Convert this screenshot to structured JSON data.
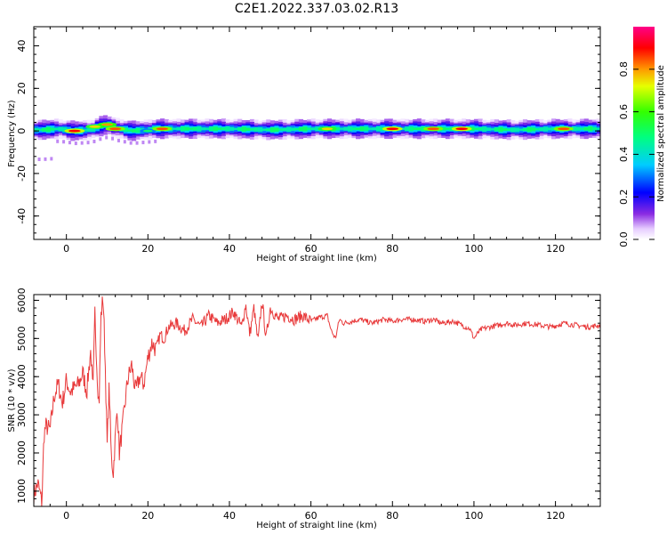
{
  "title": "C2E1.2022.337.03.02.R13",
  "chart_data": [
    {
      "type": "heatmap",
      "xlabel": "Height of straight line (km)",
      "ylabel": "Frequency (Hz)",
      "xlim": [
        -8,
        131
      ],
      "ylim": [
        -51,
        49
      ],
      "xticks": [
        0,
        20,
        40,
        60,
        80,
        100,
        120
      ],
      "yticks": [
        -40,
        -20,
        0,
        20,
        40
      ],
      "colorbar": {
        "label": "Normalized spectral amplitude",
        "ticks": [
          "0.0",
          "0.2",
          "0.4",
          "0.6",
          "0.8"
        ],
        "range": [
          0,
          1
        ],
        "colormap": "gist_rainbow_r (magenta-red high, violet/white low)"
      },
      "ridge_frequency_hz": [
        [
          -6,
          0.5
        ],
        [
          -2,
          1
        ],
        [
          2,
          0
        ],
        [
          6,
          0.5
        ],
        [
          8,
          2
        ],
        [
          10,
          3
        ],
        [
          12,
          1.5
        ],
        [
          16,
          0
        ],
        [
          22,
          1
        ],
        [
          30,
          1
        ],
        [
          40,
          1
        ],
        [
          50,
          0.5
        ],
        [
          60,
          1
        ],
        [
          70,
          1
        ],
        [
          80,
          1
        ],
        [
          90,
          1
        ],
        [
          100,
          1
        ],
        [
          110,
          0.5
        ],
        [
          120,
          1
        ],
        [
          130,
          1
        ]
      ],
      "hot_spots": [
        {
          "x": 2,
          "y": 0,
          "amplitude": 0.9
        },
        {
          "x": 7,
          "y": 2,
          "amplitude": 0.75
        },
        {
          "x": 10,
          "y": 3,
          "amplitude": 0.8
        },
        {
          "x": 12,
          "y": 1,
          "amplitude": 0.85
        },
        {
          "x": 20,
          "y": 0,
          "amplitude": 0.5
        },
        {
          "x": 23.5,
          "y": 1,
          "amplitude": 0.85
        },
        {
          "x": 64,
          "y": 1,
          "amplitude": 0.75
        },
        {
          "x": 80,
          "y": 1,
          "amplitude": 0.9
        },
        {
          "x": 90,
          "y": 1,
          "amplitude": 0.85
        },
        {
          "x": 97,
          "y": 1,
          "amplitude": 0.9
        },
        {
          "x": 122,
          "y": 1,
          "amplitude": 0.85
        }
      ]
    },
    {
      "type": "line",
      "xlabel": "Height of straight line (km)",
      "ylabel": "SNR (10 * v/v)",
      "xlim": [
        -8,
        131
      ],
      "ylim": [
        600,
        6150
      ],
      "xticks": [
        0,
        20,
        40,
        60,
        80,
        100,
        120
      ],
      "yticks": [
        1000,
        2000,
        3000,
        4000,
        5000,
        6000
      ],
      "series": [
        {
          "color": "#e8393a",
          "x": [
            -8,
            -7,
            -6,
            -5.5,
            -5,
            -4,
            -3,
            -2,
            -1,
            0,
            1,
            2,
            3,
            4,
            5,
            5.5,
            6,
            6.5,
            7,
            7.5,
            8,
            8.5,
            9,
            9.5,
            10,
            10.5,
            11,
            11.5,
            12,
            12.5,
            13,
            14,
            15,
            16,
            17,
            18,
            19,
            20,
            21,
            22,
            23,
            24,
            25,
            27,
            29,
            31,
            33,
            35,
            37,
            39,
            41,
            43,
            44,
            45,
            46,
            47,
            48,
            49,
            50,
            52,
            54,
            56,
            58,
            60,
            62,
            64,
            65,
            66,
            67,
            68,
            70,
            72,
            75,
            78,
            80,
            82,
            85,
            88,
            90,
            92,
            95,
            97,
            98,
            99,
            100,
            101,
            102,
            104,
            106,
            108,
            110,
            113,
            116,
            119,
            122,
            125,
            128,
            131
          ],
          "values": [
            900,
            1200,
            700,
            2500,
            2700,
            2600,
            3500,
            3800,
            3300,
            3900,
            3600,
            3700,
            3800,
            4100,
            3600,
            4200,
            4700,
            3500,
            5700,
            4200,
            3200,
            5600,
            6100,
            4500,
            2200,
            3800,
            1900,
            1500,
            2400,
            3200,
            2000,
            2900,
            3900,
            4300,
            3600,
            4000,
            3800,
            4500,
            4900,
            4700,
            5100,
            5000,
            5300,
            5400,
            5200,
            5500,
            5300,
            5600,
            5400,
            5500,
            5700,
            5300,
            5900,
            5100,
            5800,
            4900,
            6000,
            5000,
            5800,
            5500,
            5600,
            5500,
            5600,
            5450,
            5550,
            5600,
            5200,
            5000,
            5500,
            5400,
            5450,
            5500,
            5400,
            5500,
            5450,
            5500,
            5500,
            5450,
            5500,
            5400,
            5450,
            5350,
            5300,
            5250,
            5000,
            5150,
            5250,
            5300,
            5350,
            5400,
            5350,
            5400,
            5350,
            5300,
            5400,
            5350,
            5300,
            5350
          ]
        }
      ]
    }
  ]
}
